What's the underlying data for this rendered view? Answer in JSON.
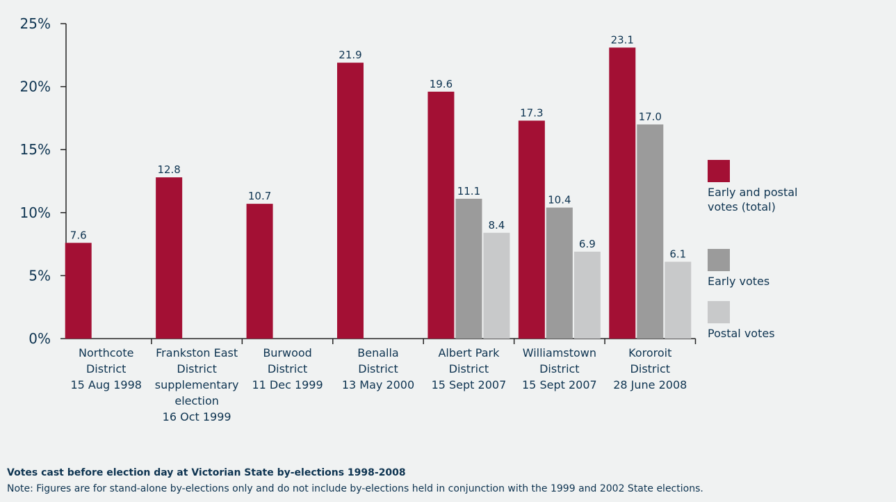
{
  "chart_data": {
    "type": "bar",
    "title": "Votes cast before election day at Victorian State by-elections 1998-2008",
    "note": "Note: Figures are for stand-alone by-elections only and do not include by-elections held in conjunction with the 1999 and 2002 State elections.",
    "categories": [
      [
        "Northcote",
        "District",
        "15 Aug 1998"
      ],
      [
        "Frankston East",
        "District",
        "supplementary",
        "election",
        "16 Oct 1999"
      ],
      [
        "Burwood",
        "District",
        "11 Dec 1999"
      ],
      [
        "Benalla",
        "District",
        "13 May 2000"
      ],
      [
        "Albert Park",
        "District",
        "15 Sept 2007"
      ],
      [
        "Williamstown",
        "District",
        "15 Sept 2007"
      ],
      [
        "Kororoit",
        "District",
        "28 June 2008"
      ]
    ],
    "series": [
      {
        "name": "Early and postal votes (total)",
        "color": "#a31034",
        "values": [
          7.6,
          12.8,
          10.7,
          21.9,
          19.6,
          17.3,
          23.1
        ]
      },
      {
        "name": "Early votes",
        "color": "#9b9b9b",
        "values": [
          null,
          null,
          null,
          null,
          11.1,
          10.4,
          17
        ],
        "value_labels": [
          null,
          null,
          null,
          null,
          "11.1",
          "10.4",
          "17.0"
        ]
      },
      {
        "name": "Postal votes",
        "color": "#c8c9ca",
        "values": [
          null,
          null,
          null,
          null,
          8.4,
          6.9,
          6.1
        ]
      }
    ],
    "ylim": [
      0,
      25
    ],
    "yticks": [
      {
        "value": 0,
        "label": "0%"
      },
      {
        "value": 5,
        "label": "5%"
      },
      {
        "value": 10,
        "label": "10%"
      },
      {
        "value": 15,
        "label": "15%"
      },
      {
        "value": 20,
        "label": "20%"
      },
      {
        "value": 25,
        "label": "25%"
      }
    ],
    "legend": "right"
  }
}
